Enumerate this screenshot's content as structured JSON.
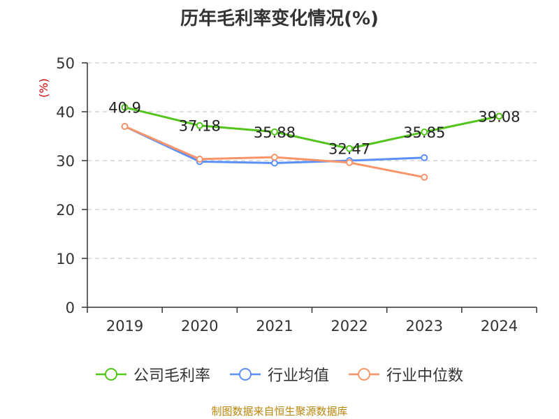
{
  "title": "历年毛利率变化情况(%)",
  "source": "制图数据来自恒生聚源数据库",
  "chart_data": {
    "type": "line",
    "title": "历年毛利率变化情况(%)",
    "ylabel": "(%)",
    "ylim": [
      0,
      50
    ],
    "yticks": [
      0,
      10,
      20,
      30,
      40,
      50
    ],
    "categories": [
      "2019",
      "2020",
      "2021",
      "2022",
      "2023",
      "2024"
    ],
    "grid": true,
    "legend_position": "bottom",
    "series": [
      {
        "name": "公司毛利率",
        "color": "#52c41a",
        "values": [
          40.9,
          37.18,
          35.88,
          32.47,
          35.85,
          39.08
        ],
        "labels": [
          "40.9",
          "37.18",
          "35.88",
          "32.47",
          "35.85",
          "39.08"
        ]
      },
      {
        "name": "行业均值",
        "color": "#5b8ff9",
        "values": [
          37.0,
          29.8,
          29.5,
          30.0,
          30.6,
          null
        ],
        "labels": null
      },
      {
        "name": "行业中位数",
        "color": "#f7946a",
        "values": [
          37.0,
          30.3,
          30.7,
          29.6,
          26.6,
          null
        ],
        "labels": null
      }
    ]
  }
}
